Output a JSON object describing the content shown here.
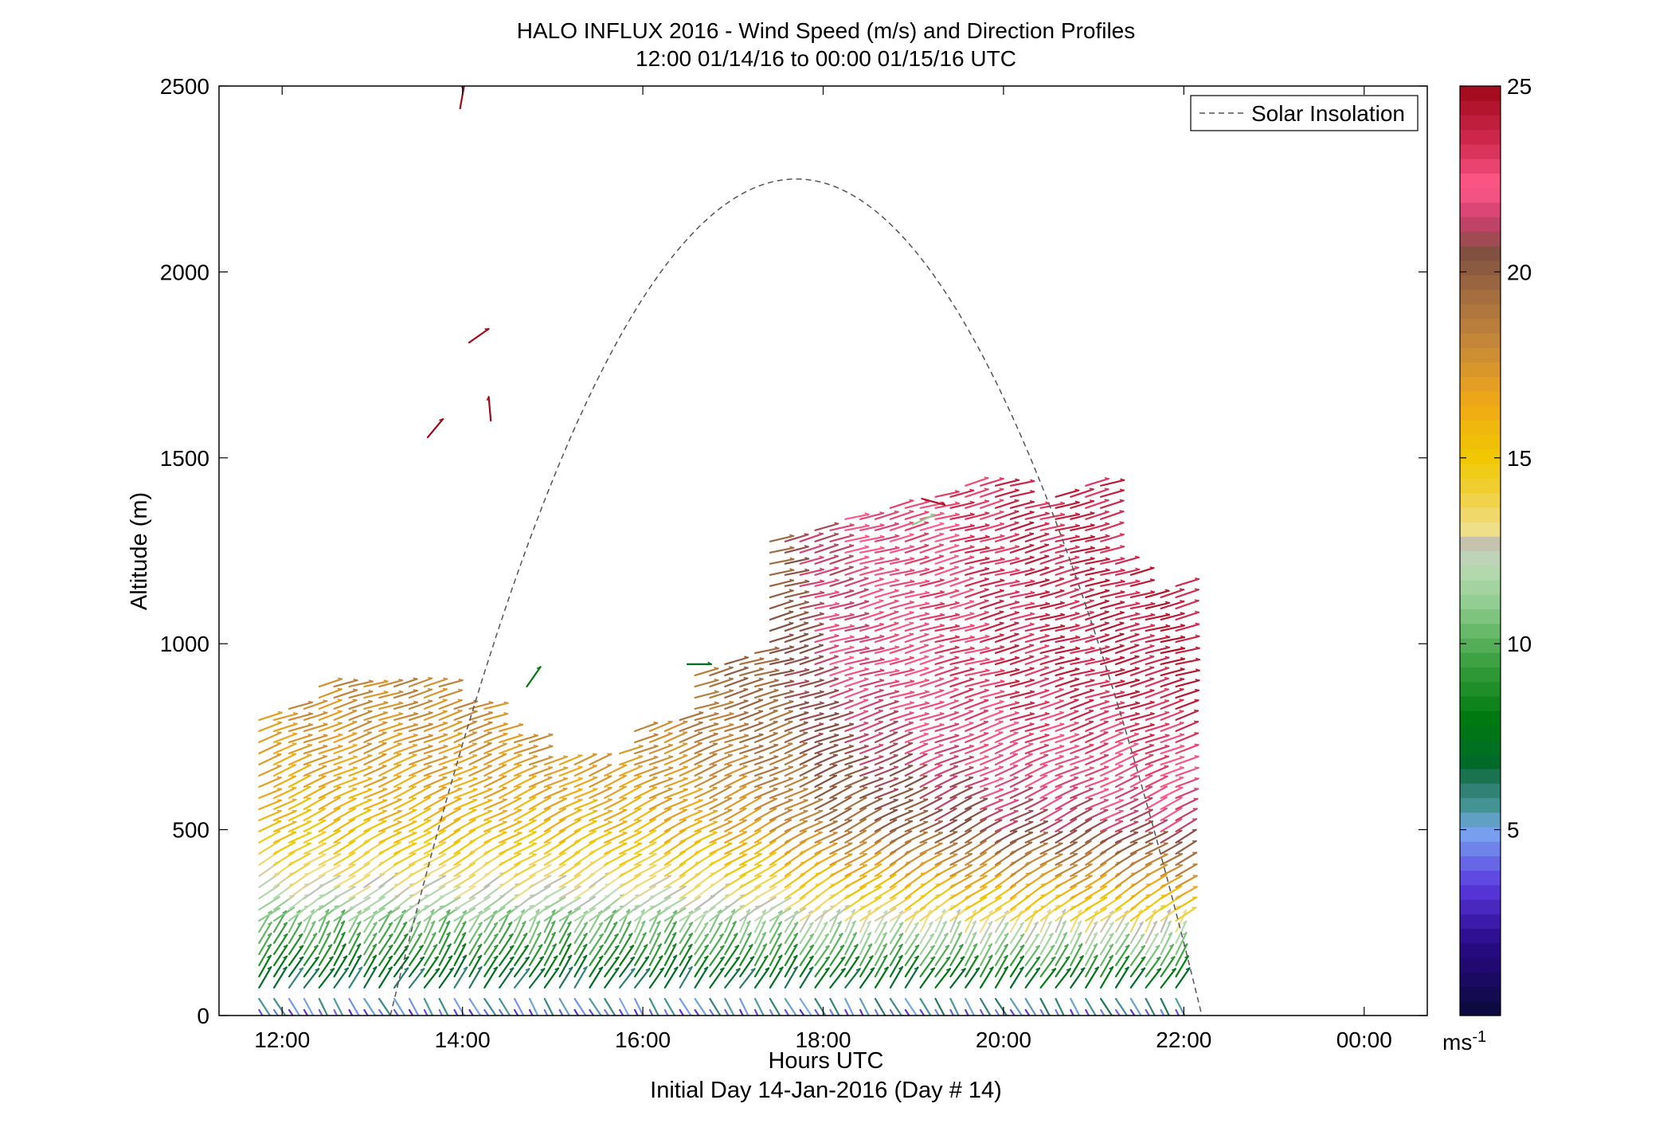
{
  "chart_data": {
    "type": "wind-barb profile",
    "title": "HALO INFLUX 2016 - Wind Speed (m/s) and Direction Profiles",
    "subtitle": "12:00 01/14/16 to 00:00 01/15/16  UTC",
    "xlabel": "Hours UTC",
    "xlabel2": "Initial Day 14-Jan-2016 (Day # 14)",
    "ylabel": "Altitude (m)",
    "xlim": [
      11.3,
      24.7
    ],
    "ylim": [
      0,
      2500
    ],
    "xticks": [
      12,
      14,
      16,
      18,
      20,
      22,
      24
    ],
    "xtick_labels": [
      "12:00",
      "14:00",
      "16:00",
      "18:00",
      "20:00",
      "22:00",
      "00:00"
    ],
    "yticks": [
      0,
      500,
      1000,
      1500,
      2000,
      2500
    ],
    "ytick_labels": [
      "0",
      "500",
      "1000",
      "1500",
      "2000",
      "2500"
    ],
    "legend": {
      "label": "Solar Insolation",
      "position": "top-right",
      "line_color": "#555555"
    },
    "solar_insolation": {
      "rise_hour": 13.2,
      "set_hour": 22.2,
      "peak_hour": 17.7,
      "peak_altitude": 2250
    },
    "colorbar": {
      "min": 0,
      "max": 25,
      "ticks": [
        5,
        10,
        15,
        20,
        25
      ],
      "tick_labels": [
        "5",
        "10",
        "15",
        "20",
        "25"
      ],
      "unit_label": "ms",
      "unit_sup": "-1",
      "stops": [
        {
          "v": 0,
          "c": "#0a0a3a"
        },
        {
          "v": 2,
          "c": "#2a0a8a"
        },
        {
          "v": 3.5,
          "c": "#5a3adf"
        },
        {
          "v": 5,
          "c": "#7aa8f0"
        },
        {
          "v": 5.5,
          "c": "#4a9aa0"
        },
        {
          "v": 6.2,
          "c": "#2a7a6a"
        },
        {
          "v": 6.8,
          "c": "#006a2a"
        },
        {
          "v": 8,
          "c": "#007a10"
        },
        {
          "v": 9.5,
          "c": "#3aa040"
        },
        {
          "v": 11,
          "c": "#8ccc8c"
        },
        {
          "v": 12.2,
          "c": "#c0dcb8"
        },
        {
          "v": 12.6,
          "c": "#b8b8b8"
        },
        {
          "v": 13,
          "c": "#f0e090"
        },
        {
          "v": 14,
          "c": "#f0d040"
        },
        {
          "v": 15,
          "c": "#f0c800"
        },
        {
          "v": 16.5,
          "c": "#f0a818"
        },
        {
          "v": 18,
          "c": "#c88a38"
        },
        {
          "v": 19.5,
          "c": "#a06a40"
        },
        {
          "v": 20.5,
          "c": "#805040"
        },
        {
          "v": 21.5,
          "c": "#d04070"
        },
        {
          "v": 22.3,
          "c": "#ff5a8a"
        },
        {
          "v": 23.5,
          "c": "#d02a50"
        },
        {
          "v": 25,
          "c": "#a00818"
        }
      ]
    },
    "profile_times_start": 11.85,
    "profile_times_step": 0.1667,
    "profile_count": 62,
    "altitude_step": 30,
    "barb_length": 30,
    "profile_tops": [
      810,
      820,
      830,
      850,
      890,
      890,
      895,
      900,
      900,
      900,
      905,
      905,
      900,
      830,
      830,
      830,
      790,
      760,
      760,
      700,
      690,
      690,
      680,
      660,
      720,
      770,
      770,
      780,
      820,
      940,
      930,
      960,
      970,
      985,
      1290,
      1290,
      1300,
      1310,
      1320,
      1340,
      1350,
      1360,
      1370,
      1380,
      1390,
      1400,
      1410,
      1430,
      1440,
      1450,
      1430,
      1380,
      1390,
      1410,
      1420,
      1440,
      1440,
      1220,
      1210,
      1150,
      1140,
      1170
    ],
    "speed_profile": [
      {
        "alt": 0,
        "speed": 3
      },
      {
        "alt": 60,
        "speed": 6
      },
      {
        "alt": 150,
        "speed": 9
      },
      {
        "alt": 250,
        "speed": 11
      },
      {
        "alt": 350,
        "speed": 13
      },
      {
        "alt": 500,
        "speed": 15.5
      },
      {
        "alt": 700,
        "speed": 17
      },
      {
        "alt": 900,
        "speed": 18
      }
    ],
    "speed_shift_by_time": [
      {
        "t": 12,
        "s": 0
      },
      {
        "t": 16,
        "s": 0.5
      },
      {
        "t": 17.5,
        "s": 2
      },
      {
        "t": 18,
        "s": 3.5
      },
      {
        "t": 19,
        "s": 4.5
      },
      {
        "t": 20,
        "s": 5.5
      },
      {
        "t": 22,
        "s": 6
      },
      {
        "t": 24,
        "s": 6
      }
    ],
    "isolated_barbs": [
      {
        "t": 14.08,
        "alt": 2440,
        "speed": 25,
        "angle": 80
      },
      {
        "t": 14.18,
        "alt": 1810,
        "speed": 25,
        "angle": 35
      },
      {
        "t": 13.72,
        "alt": 1555,
        "speed": 25,
        "angle": 50
      },
      {
        "t": 14.42,
        "alt": 1600,
        "speed": 25,
        "angle": 95
      },
      {
        "t": 14.82,
        "alt": 885,
        "speed": 8,
        "angle": 55
      },
      {
        "t": 19.1,
        "alt": 1320,
        "speed": 11,
        "angle": 25
      },
      {
        "t": 16.6,
        "alt": 945,
        "speed": 7.5,
        "angle": 0
      },
      {
        "t": 19.2,
        "alt": 1390,
        "speed": 24.5,
        "angle": -15
      }
    ]
  }
}
